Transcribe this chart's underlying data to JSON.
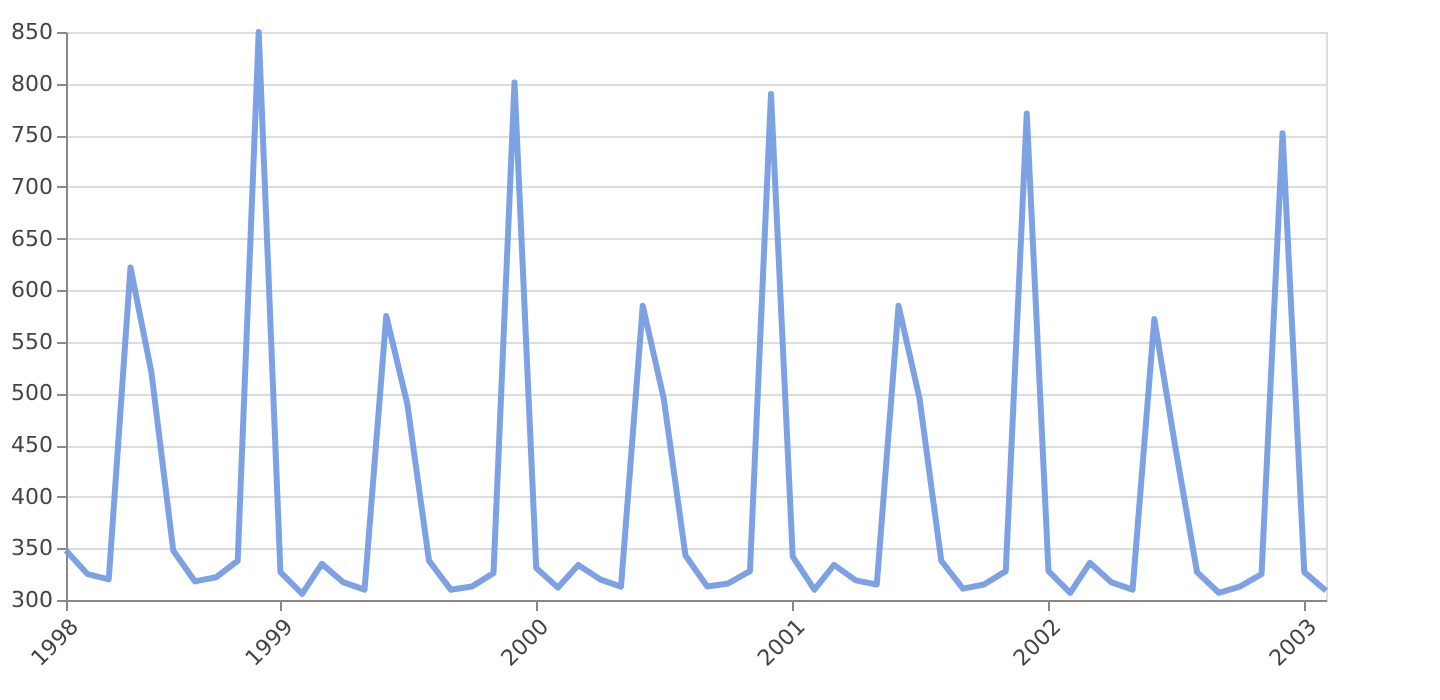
{
  "chart_data": {
    "type": "line",
    "x": [
      "1998-03",
      "1998-04",
      "1998-05",
      "1998-06",
      "1998-07",
      "1998-08",
      "1998-09",
      "1998-10",
      "1998-11",
      "1998-12",
      "1999-01",
      "1999-02",
      "1999-03",
      "1999-04",
      "1999-05",
      "1999-06",
      "1999-07",
      "1999-08",
      "1999-09",
      "1999-10",
      "1999-11",
      "1999-12",
      "2000-01",
      "2000-02",
      "2000-03",
      "2000-04",
      "2000-05",
      "2000-06",
      "2000-07",
      "2000-08",
      "2000-09",
      "2000-10",
      "2000-11",
      "2000-12",
      "2001-01",
      "2001-02",
      "2001-03",
      "2001-04",
      "2001-05",
      "2001-06",
      "2001-07",
      "2001-08",
      "2001-09",
      "2001-10",
      "2001-11",
      "2001-12",
      "2002-01",
      "2002-02",
      "2002-03",
      "2002-04",
      "2002-05",
      "2002-06",
      "2002-07",
      "2002-08",
      "2002-09",
      "2002-10",
      "2002-11",
      "2002-12",
      "2003-01",
      "2003-02"
    ],
    "series": [
      {
        "color": "#6f98e0",
        "values": [
          348,
          325,
          320,
          622,
          520,
          348,
          318,
          322,
          338,
          850,
          327,
          306,
          335,
          317,
          310,
          575,
          490,
          338,
          310,
          313,
          326,
          801,
          331,
          312,
          334,
          320,
          313,
          585,
          495,
          343,
          313,
          316,
          328,
          790,
          342,
          310,
          334,
          319,
          315,
          585,
          495,
          338,
          311,
          315,
          328,
          771,
          328,
          307,
          336,
          317,
          310,
          572,
          448,
          327,
          307,
          313,
          325,
          752,
          327,
          309
        ]
      }
    ],
    "xlim": [
      "1998-03",
      "2003-02"
    ],
    "xticks": [
      {
        "value": "1998-03",
        "label": "1998"
      },
      {
        "value": "1999",
        "label": "1999"
      },
      {
        "value": "2000",
        "label": "2000"
      },
      {
        "value": "2001",
        "label": "2001"
      },
      {
        "value": "2002",
        "label": "2002"
      },
      {
        "value": "2003",
        "label": "2003"
      }
    ],
    "ylim": [
      300,
      850
    ],
    "yticks": [
      300,
      350,
      400,
      450,
      500,
      550,
      600,
      650,
      700,
      750,
      800,
      850
    ],
    "grid": "y",
    "marker": "none",
    "line_style": "solid"
  }
}
